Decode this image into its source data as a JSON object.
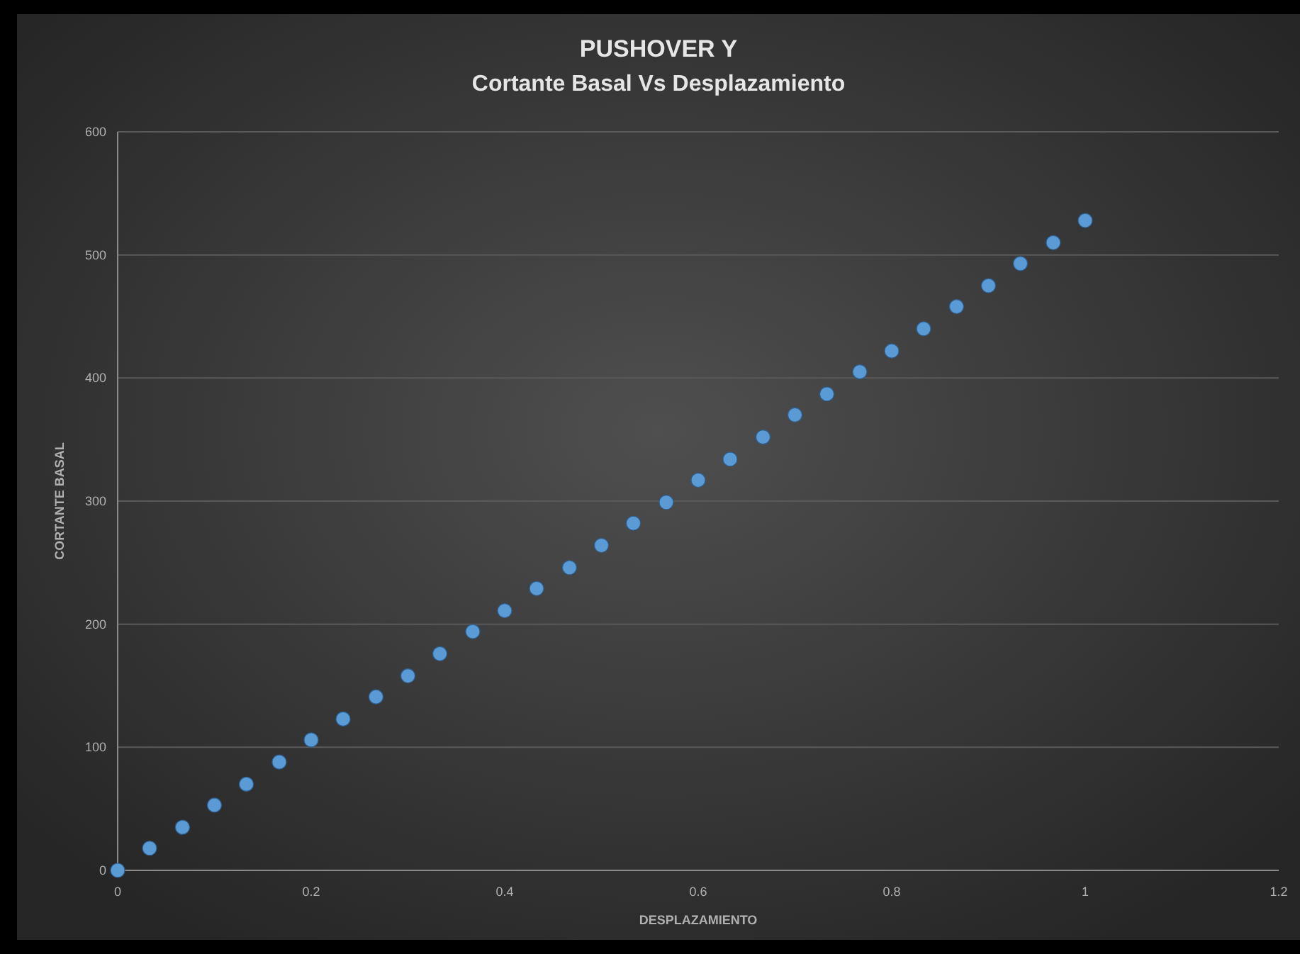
{
  "chart_data": {
    "type": "scatter",
    "title": "PUSHOVER Y",
    "subtitle": "Cortante Basal Vs Desplazamiento",
    "xlabel": "DESPLAZAMIENTO",
    "ylabel": "CORTANTE BASAL",
    "x": [
      0,
      0.033,
      0.067,
      0.1,
      0.133,
      0.167,
      0.2,
      0.233,
      0.267,
      0.3,
      0.333,
      0.367,
      0.4,
      0.433,
      0.467,
      0.5,
      0.533,
      0.567,
      0.6,
      0.633,
      0.667,
      0.7,
      0.733,
      0.767,
      0.8,
      0.833,
      0.867,
      0.9,
      0.933,
      0.967,
      1
    ],
    "series": [
      {
        "color": "#5b9bd5",
        "values": [
          0,
          18,
          35,
          53,
          70,
          88,
          106,
          123,
          141,
          158,
          176,
          194,
          211,
          229,
          246,
          264,
          282,
          299,
          317,
          334,
          352,
          370,
          387,
          405,
          422,
          440,
          458,
          475,
          493,
          510,
          528
        ]
      }
    ],
    "xlim": [
      0,
      1.2
    ],
    "xticks": [
      0,
      0.2,
      0.4,
      0.6,
      0.8,
      1,
      1.2
    ],
    "ylim": [
      0,
      600
    ],
    "yticks": [
      0,
      100,
      200,
      300,
      400,
      500,
      600
    ],
    "grid": "y",
    "marker": "circle"
  }
}
